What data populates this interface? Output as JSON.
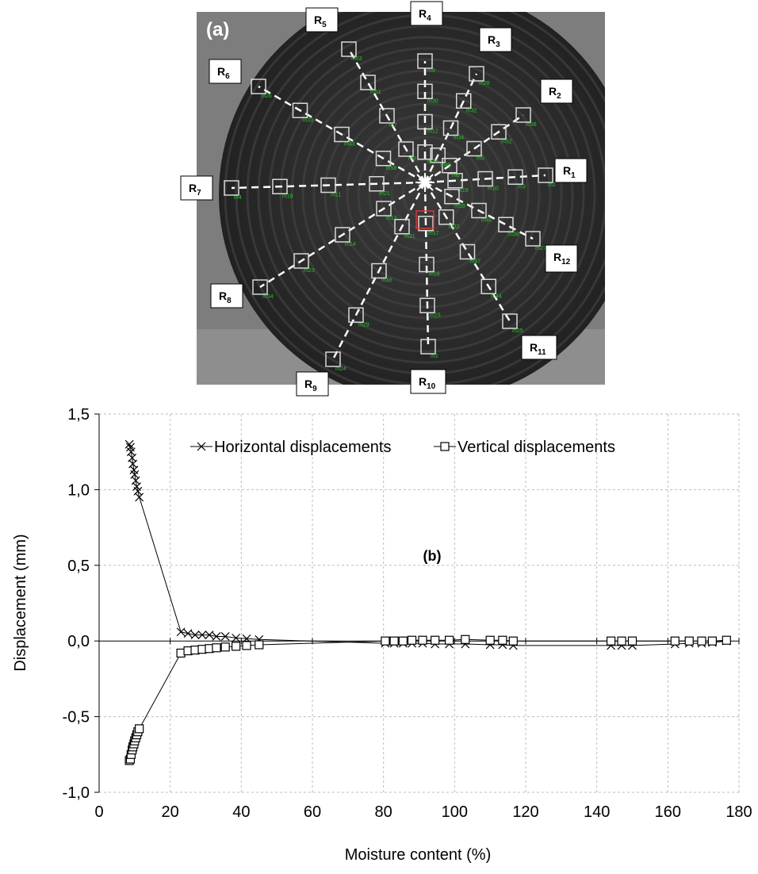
{
  "panel_a": {
    "label": "(a)",
    "center_label": "x",
    "radial_labels": [
      {
        "main": "R",
        "sub": "1"
      },
      {
        "main": "R",
        "sub": "2"
      },
      {
        "main": "R",
        "sub": "3"
      },
      {
        "main": "R",
        "sub": "4"
      },
      {
        "main": "R",
        "sub": "5"
      },
      {
        "main": "R",
        "sub": "6"
      },
      {
        "main": "R",
        "sub": "7"
      },
      {
        "main": "R",
        "sub": "8"
      },
      {
        "main": "R",
        "sub": "9"
      },
      {
        "main": "R",
        "sub": "10"
      },
      {
        "main": "R",
        "sub": "11"
      },
      {
        "main": "R",
        "sub": "12"
      }
    ],
    "point_tags": [
      "m19",
      "m10",
      "m3",
      "m2",
      "m6",
      "m5",
      "m52",
      "m56",
      "m49",
      "m34",
      "m32",
      "m28",
      "m20",
      "m12",
      "m30",
      "m9",
      "m8",
      "m7",
      "m51",
      "m53",
      "m58",
      "m43",
      "m33",
      "m26",
      "m21",
      "m11",
      "m18",
      "m4",
      "m13",
      "m14",
      "m23",
      "m54",
      "m31",
      "m46",
      "m29",
      "m24",
      "m17",
      "m16",
      "m15",
      "m1",
      "m22",
      "m47",
      "m44",
      "m25",
      "m39",
      "m40",
      "m38",
      "m27",
      "m48",
      "m55",
      "m50",
      "m45"
    ]
  },
  "chart_data": {
    "type": "scatter",
    "panel_label": "(b)",
    "xlabel": "Moisture content (%)",
    "ylabel": "Displacement (mm)",
    "xlim": [
      0,
      180
    ],
    "ylim": [
      -1.0,
      1.5
    ],
    "x_ticks": [
      0,
      20,
      40,
      60,
      80,
      100,
      120,
      140,
      160,
      180
    ],
    "y_ticks": [
      -1.0,
      -0.5,
      0.0,
      0.5,
      1.0,
      1.5
    ],
    "x_tick_labels": [
      "0",
      "20",
      "40",
      "60",
      "80",
      "100",
      "120",
      "140",
      "160",
      "180"
    ],
    "y_tick_labels": [
      "-1,0",
      "-0,5",
      "0,0",
      "0,5",
      "1,0",
      "1,5"
    ],
    "grid": true,
    "legend_position": "top",
    "series": [
      {
        "name": "Horizontal displacements",
        "marker": "x",
        "x": [
          8.5,
          8.8,
          9.0,
          9.3,
          9.5,
          9.8,
          10.0,
          10.3,
          10.6,
          10.9,
          11.3,
          23.0,
          25.0,
          27.0,
          29.0,
          31.0,
          33.0,
          35.5,
          38.5,
          41.5,
          45.0,
          80.5,
          83.0,
          85.5,
          88.0,
          91.0,
          94.5,
          98.5,
          103.0,
          110.0,
          113.5,
          116.5,
          144.0,
          147.0,
          150.0,
          162.0,
          166.0,
          169.5,
          172.5,
          176.5
        ],
        "y": [
          1.3,
          1.28,
          1.25,
          1.21,
          1.17,
          1.13,
          1.1,
          1.06,
          1.02,
          0.99,
          0.95,
          0.06,
          0.05,
          0.04,
          0.04,
          0.04,
          0.03,
          0.03,
          0.02,
          0.015,
          0.01,
          -0.015,
          -0.015,
          -0.015,
          -0.015,
          -0.015,
          -0.02,
          -0.02,
          -0.02,
          -0.025,
          -0.025,
          -0.03,
          -0.03,
          -0.03,
          -0.03,
          -0.02,
          -0.015,
          -0.015,
          -0.01,
          0.0
        ]
      },
      {
        "name": "Vertical displacements",
        "marker": "square",
        "x": [
          8.5,
          8.8,
          9.0,
          9.3,
          9.5,
          9.8,
          10.0,
          10.3,
          10.6,
          10.9,
          11.3,
          23.0,
          25.0,
          27.0,
          29.0,
          31.0,
          33.0,
          35.5,
          38.5,
          41.5,
          45.0,
          80.5,
          83.0,
          85.5,
          88.0,
          91.0,
          94.5,
          98.5,
          103.0,
          110.0,
          113.5,
          116.5,
          144.0,
          147.0,
          150.0,
          162.0,
          166.0,
          169.5,
          172.5,
          176.5
        ],
        "y": [
          -0.79,
          -0.78,
          -0.75,
          -0.72,
          -0.7,
          -0.68,
          -0.66,
          -0.64,
          -0.62,
          -0.6,
          -0.58,
          -0.08,
          -0.065,
          -0.06,
          -0.055,
          -0.05,
          -0.045,
          -0.04,
          -0.035,
          -0.03,
          -0.025,
          0.0,
          0.0,
          0.0,
          0.005,
          0.005,
          0.005,
          0.005,
          0.01,
          0.005,
          0.005,
          0.0,
          0.0,
          0.0,
          0.0,
          0.0,
          0.0,
          0.0,
          0.0,
          0.005
        ]
      }
    ]
  }
}
